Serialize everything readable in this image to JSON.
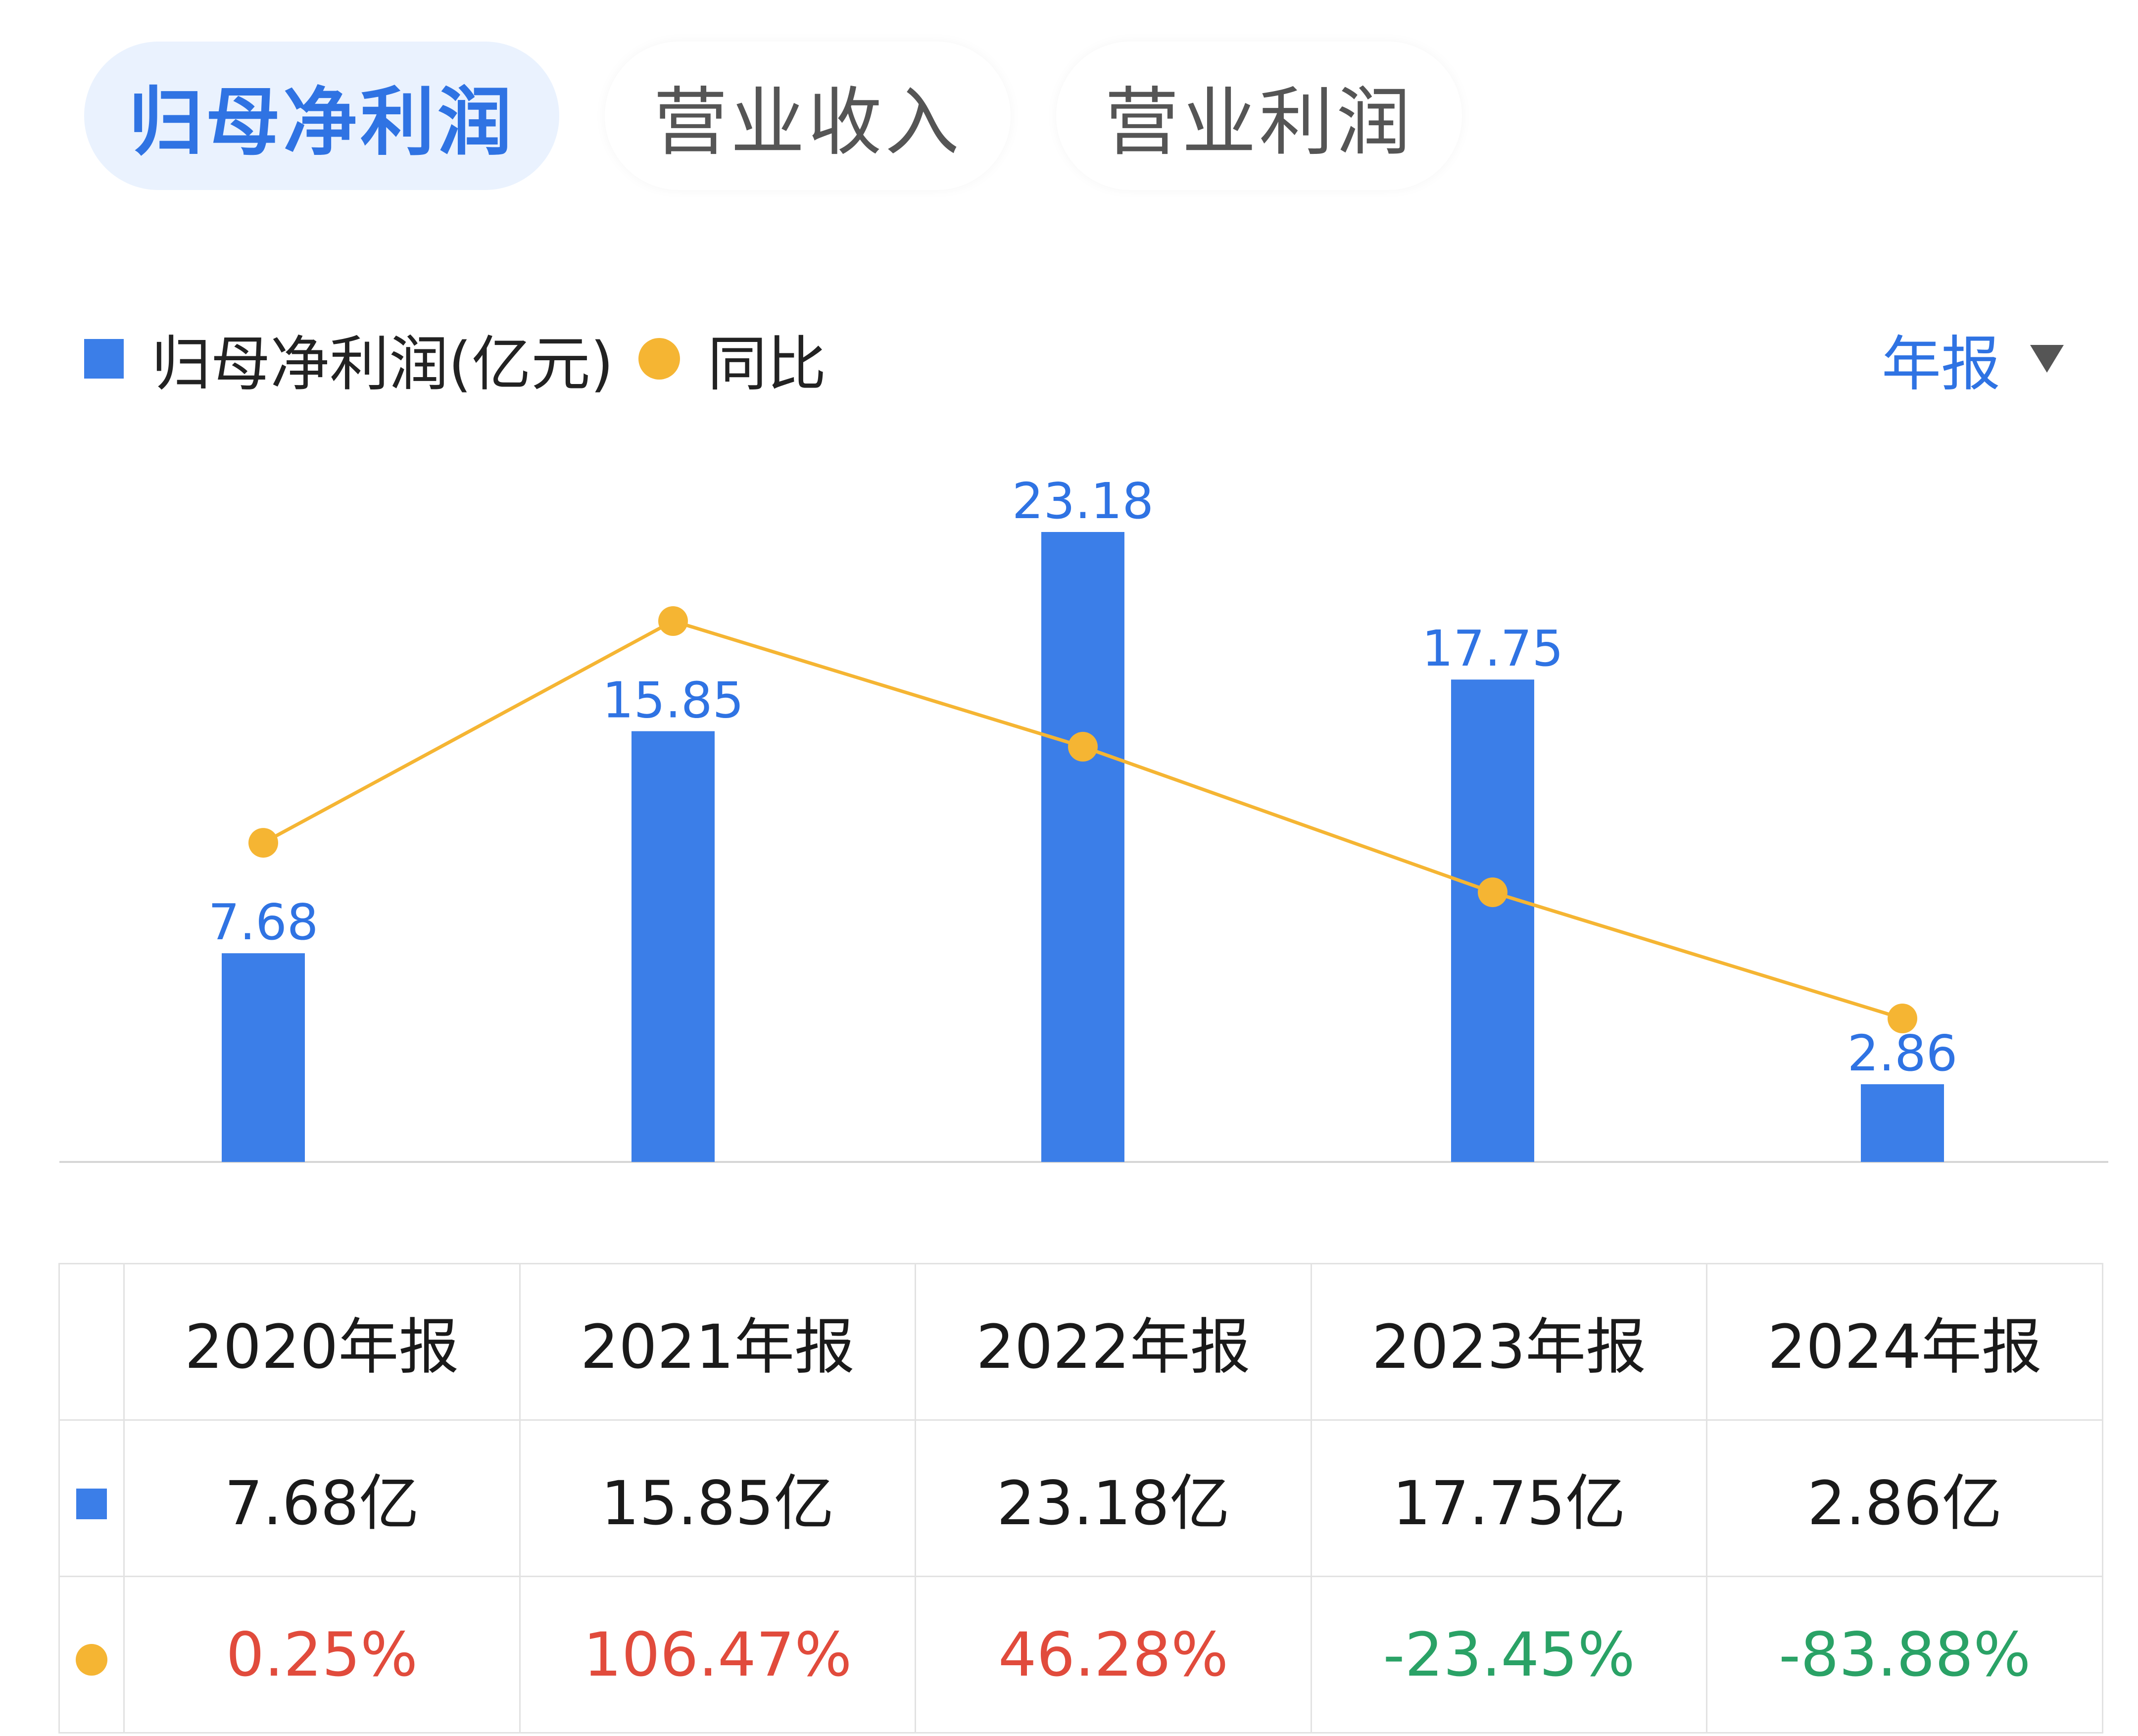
{
  "tabs": [
    {
      "label": "归母净利润",
      "active": true
    },
    {
      "label": "营业收入",
      "active": false
    },
    {
      "label": "营业利润",
      "active": false
    }
  ],
  "legend": {
    "bar_label": "归母净利润(亿元)",
    "line_label": "同比"
  },
  "period_selector": {
    "label": "年报",
    "icon": "caret-down-icon"
  },
  "colors": {
    "bar": "#3b7ee8",
    "line": "#f5b533",
    "accent": "#2f73e3",
    "positive": "#e14b3c",
    "negative": "#2aa266"
  },
  "chart_data": {
    "type": "bar",
    "categories": [
      "2020年报",
      "2021年报",
      "2022年报",
      "2023年报",
      "2024年报"
    ],
    "series": [
      {
        "name": "归母净利润(亿元)",
        "type": "bar",
        "values": [
          7.68,
          15.85,
          23.18,
          17.75,
          2.86
        ],
        "labels": [
          "7.68",
          "15.85",
          "23.18",
          "17.75",
          "2.86"
        ]
      },
      {
        "name": "同比",
        "type": "line",
        "values": [
          0.25,
          106.47,
          46.28,
          -23.45,
          -83.88
        ],
        "unit": "%"
      }
    ],
    "title": "",
    "xlabel": "",
    "ylabel": "",
    "grid": false
  },
  "table": {
    "headers": [
      "2020年报",
      "2021年报",
      "2022年报",
      "2023年报",
      "2024年报"
    ],
    "profit_row": [
      "7.68亿",
      "15.85亿",
      "23.18亿",
      "17.75亿",
      "2.86亿"
    ],
    "yoy_row": [
      "0.25%",
      "106.47%",
      "46.28%",
      "-23.45%",
      "-83.88%"
    ]
  }
}
